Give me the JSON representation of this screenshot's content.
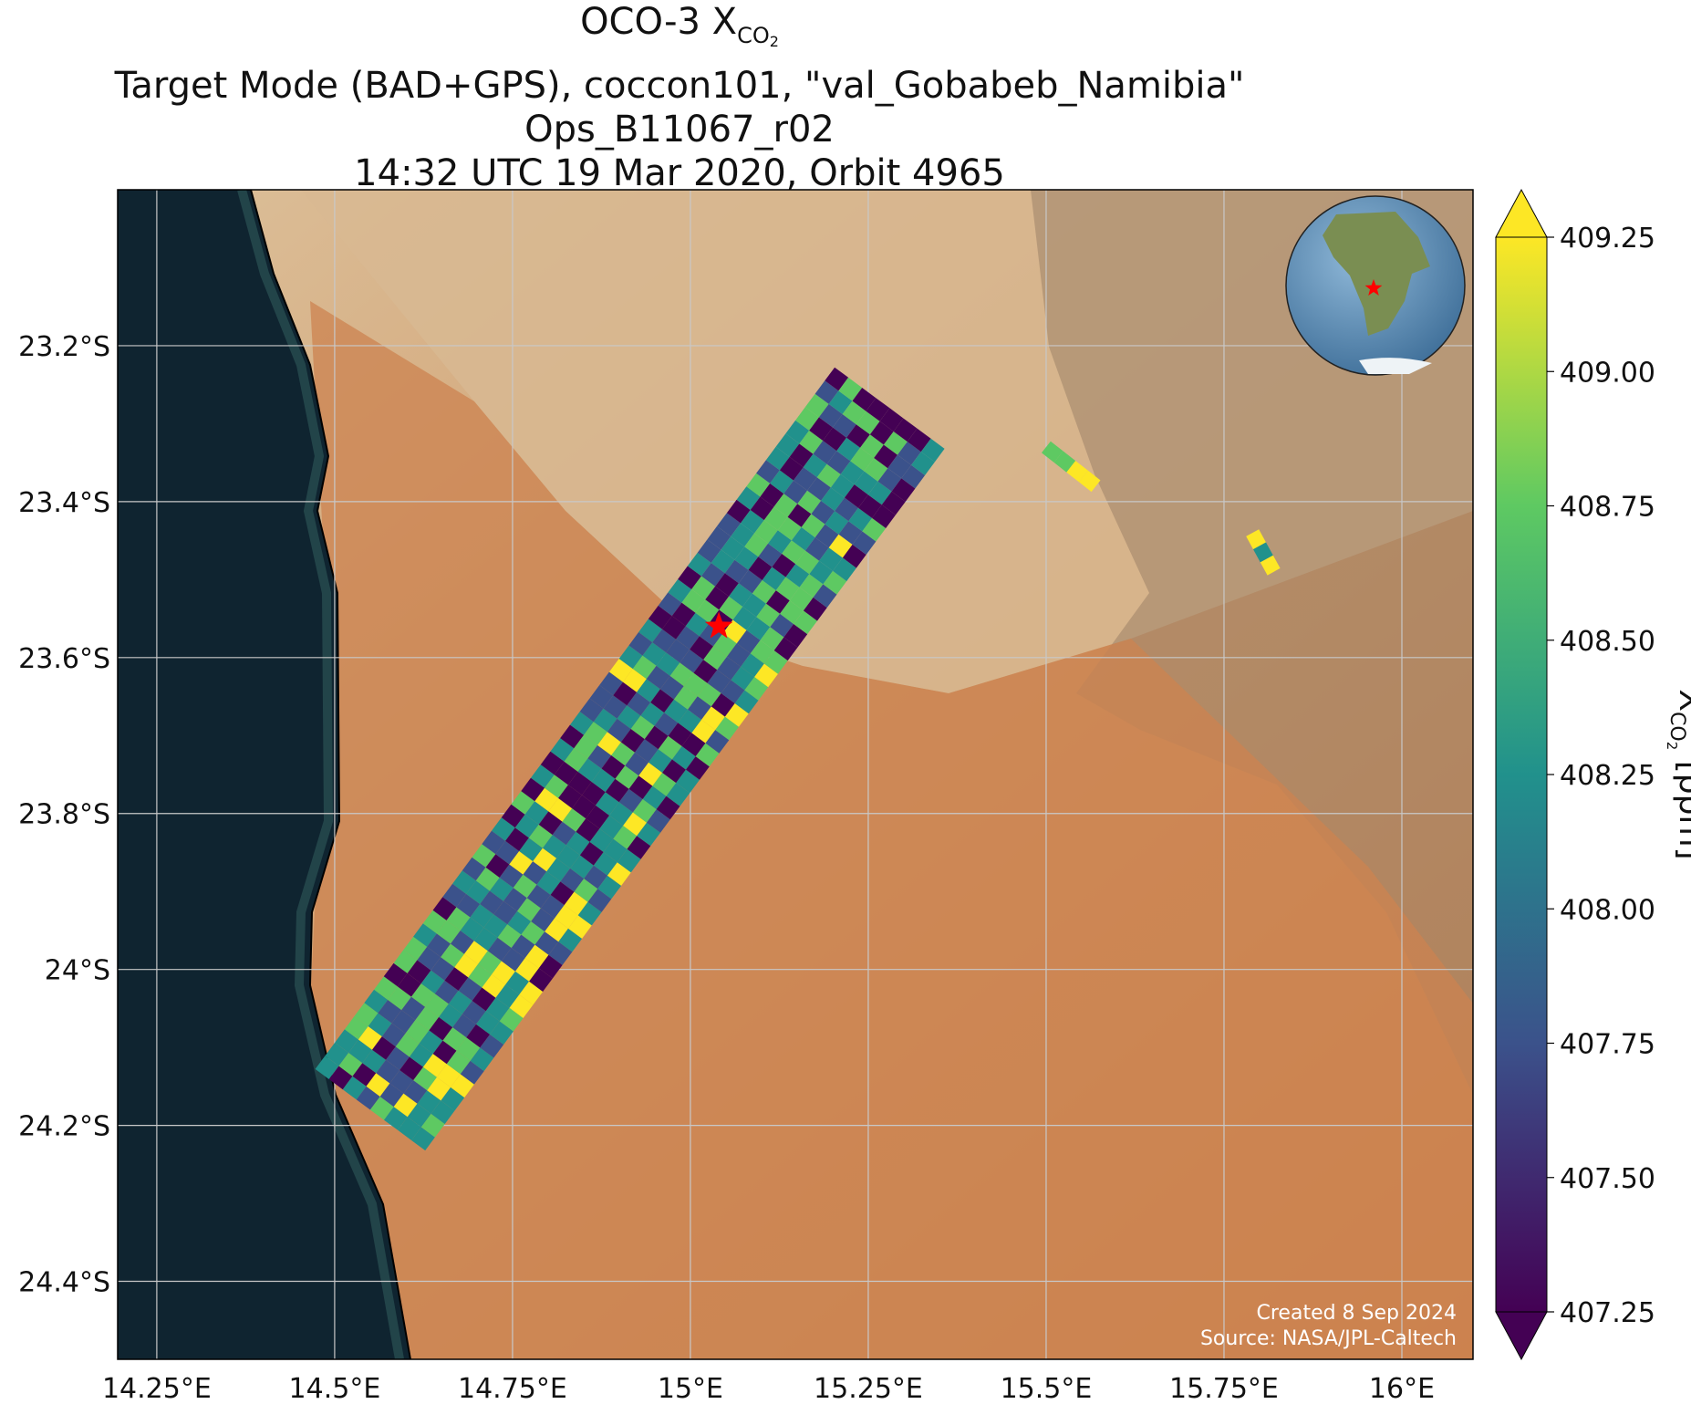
{
  "title": {
    "line1_prefix": "OCO-3 X",
    "line1_sub": "CO",
    "line1_sub2": "2",
    "line2": "Target Mode (BAD+GPS), coccon101, \"val_Gobabeb_Namibia\"",
    "line3": "Ops_B11067_r02",
    "line4": "14:32 UTC 19 Mar 2020, Orbit 4965"
  },
  "map": {
    "x_ticks": [
      "14.25°E",
      "14.5°E",
      "14.75°E",
      "15°E",
      "15.25°E",
      "15.5°E",
      "15.75°E",
      "16°E"
    ],
    "y_ticks": [
      "23.2°S",
      "23.4°S",
      "23.6°S",
      "23.8°S",
      "24°S",
      "24.2°S",
      "24.4°S"
    ],
    "lon_values": [
      14.25,
      14.5,
      14.75,
      15.0,
      15.25,
      15.5,
      15.75,
      16.0
    ],
    "lat_values": [
      -23.2,
      -23.4,
      -23.6,
      -23.8,
      -24.0,
      -24.2,
      -24.4
    ],
    "lon_range": [
      14.195,
      16.1
    ],
    "lat_range": [
      -24.5,
      -23.0
    ],
    "target_marker": {
      "lon": 15.04,
      "lat": -23.56,
      "color": "#ff0000",
      "symbol": "star"
    },
    "grid": true,
    "inset": "globe-top-right",
    "credit_line1": "Created 8 Sep 2024",
    "credit_line2": "Source: NASA/JPL-Caltech"
  },
  "colorbar": {
    "label_prefix": "X",
    "label_sub": "CO",
    "label_sub2": "2",
    "label_suffix": " [ppm]",
    "ticks": [
      "409.25",
      "409.00",
      "408.75",
      "408.50",
      "408.25",
      "408.00",
      "407.75",
      "407.50",
      "407.25"
    ],
    "tick_values": [
      409.25,
      409.0,
      408.75,
      408.5,
      408.25,
      408.0,
      407.75,
      407.5,
      407.25
    ],
    "range": [
      407.25,
      409.25
    ],
    "colormap": "viridis",
    "extend": "both"
  },
  "colors": {
    "ocean": "#0f2430",
    "desert_light": "#d6b48c",
    "desert_dune": "#d08a55",
    "rock": "#8e765e",
    "target_star": "#ff0000",
    "viridis": [
      "#440154",
      "#3b528b",
      "#21918c",
      "#5ec962",
      "#fde725"
    ]
  },
  "chart_data": {
    "type": "heatmap",
    "x_label": "",
    "y_label": "",
    "colorbar_label": "X_CO2 [ppm]",
    "colorbar_range": [
      407.25,
      409.25
    ],
    "swath_segments": [
      {
        "start_lon": 14.55,
        "start_lat": -24.18,
        "end_lon": 15.28,
        "end_lat": -23.28
      },
      {
        "start_lon": 15.5,
        "start_lat": -23.33,
        "end_lon": 15.57,
        "end_lat": -23.38
      },
      {
        "start_lon": 15.79,
        "start_lat": -23.44,
        "end_lon": 15.82,
        "end_lat": -23.49
      }
    ]
  }
}
